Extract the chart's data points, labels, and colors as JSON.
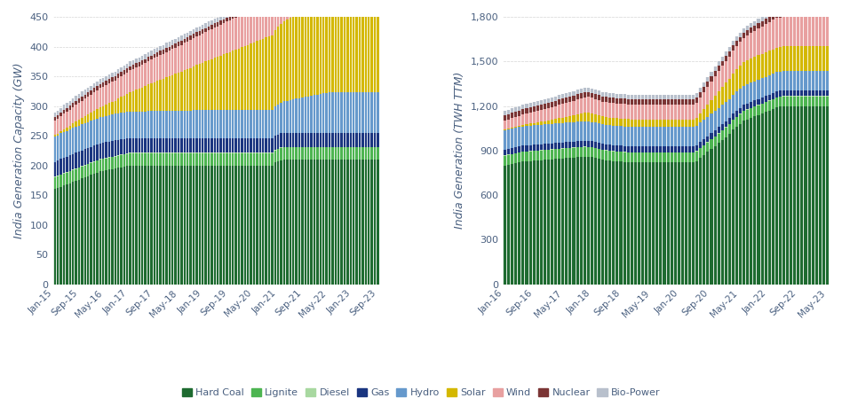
{
  "chart1": {
    "ylabel": "India Generation Capacity (GW)",
    "ylim": [
      0,
      450
    ],
    "yticks": [
      0,
      50,
      100,
      150,
      200,
      250,
      300,
      350,
      400,
      450
    ],
    "n_bars": 108,
    "xtick_labels": [
      "Jan-15",
      "Sep-15",
      "May-16",
      "Jan-17",
      "Sep-17",
      "May-18",
      "Jan-19",
      "Sep-19",
      "May-20",
      "Jan-21",
      "Sep-21",
      "May-22",
      "Jan-23",
      "Sep-23"
    ],
    "hard_coal": [
      160,
      162,
      164,
      166,
      168,
      170,
      172,
      174,
      176,
      178,
      180,
      182,
      184,
      186,
      188,
      190,
      191,
      192,
      193,
      194,
      195,
      196,
      197,
      198,
      199,
      200,
      200,
      200,
      200,
      200,
      200,
      200,
      200,
      200,
      200,
      200,
      200,
      200,
      200,
      200,
      200,
      200,
      200,
      200,
      200,
      200,
      200,
      200,
      200,
      200,
      200,
      200,
      200,
      200,
      200,
      200,
      200,
      200,
      200,
      200,
      200,
      200,
      200,
      200,
      200,
      200,
      200,
      200,
      200,
      200,
      200,
      200,
      200,
      205,
      207,
      209,
      210,
      210,
      210,
      210,
      210,
      210,
      210,
      210,
      210,
      210,
      210,
      210,
      210,
      210,
      210,
      210,
      210,
      210,
      210,
      210,
      210,
      210,
      210,
      210,
      210,
      210,
      210,
      210,
      210,
      210,
      210,
      210
    ],
    "lignite": [
      20,
      20,
      20,
      20,
      20,
      20,
      20,
      20,
      20,
      20,
      20,
      20,
      20,
      20,
      20,
      20,
      20,
      20,
      20,
      20,
      20,
      20,
      20,
      20,
      20,
      20,
      20,
      20,
      20,
      20,
      20,
      20,
      20,
      20,
      20,
      20,
      20,
      20,
      20,
      20,
      20,
      20,
      20,
      20,
      20,
      20,
      20,
      20,
      20,
      20,
      20,
      20,
      20,
      20,
      20,
      20,
      20,
      20,
      20,
      20,
      20,
      20,
      20,
      20,
      20,
      20,
      20,
      20,
      20,
      20,
      20,
      20,
      20,
      20,
      20,
      20,
      20,
      20,
      20,
      20,
      20,
      20,
      20,
      20,
      20,
      20,
      20,
      20,
      20,
      20,
      20,
      20,
      20,
      20,
      20,
      20,
      20,
      20,
      20,
      20,
      20,
      20,
      20,
      20,
      20,
      20,
      20,
      20
    ],
    "diesel": [
      1,
      1,
      1,
      1,
      1,
      1,
      1,
      1,
      1,
      1,
      1,
      1,
      1,
      1,
      1,
      1,
      1,
      1,
      1,
      1,
      1,
      1,
      1,
      1,
      1,
      1,
      1,
      1,
      1,
      1,
      1,
      1,
      1,
      1,
      1,
      1,
      1,
      1,
      1,
      1,
      1,
      1,
      1,
      1,
      1,
      1,
      1,
      1,
      1,
      1,
      1,
      1,
      1,
      1,
      1,
      1,
      1,
      1,
      1,
      1,
      1,
      1,
      1,
      1,
      1,
      1,
      1,
      1,
      1,
      1,
      1,
      1,
      1,
      1,
      1,
      1,
      1,
      1,
      1,
      1,
      1,
      1,
      1,
      1,
      1,
      1,
      1,
      1,
      1,
      1,
      1,
      1,
      1,
      1,
      1,
      1,
      1,
      1,
      1,
      1,
      1,
      1,
      1,
      1,
      1,
      1,
      1,
      1
    ],
    "gas": [
      25,
      25,
      26,
      26,
      26,
      26,
      26,
      26,
      26,
      26,
      26,
      26,
      26,
      26,
      26,
      26,
      26,
      26,
      26,
      26,
      26,
      26,
      26,
      25,
      25,
      25,
      25,
      25,
      25,
      25,
      25,
      25,
      25,
      25,
      25,
      25,
      25,
      25,
      25,
      25,
      25,
      25,
      25,
      25,
      25,
      25,
      25,
      25,
      25,
      25,
      25,
      25,
      25,
      25,
      25,
      25,
      25,
      25,
      25,
      25,
      25,
      25,
      25,
      25,
      25,
      25,
      25,
      25,
      24,
      24,
      24,
      24,
      24,
      24,
      24,
      24,
      24,
      24,
      24,
      24,
      24,
      24,
      24,
      24,
      24,
      24,
      24,
      24,
      24,
      24,
      24,
      24,
      24,
      24,
      24,
      24,
      24,
      24,
      24,
      24,
      24,
      24,
      24,
      24,
      24,
      24,
      24,
      24
    ],
    "hydro": [
      42,
      42,
      43,
      43,
      43,
      43,
      44,
      44,
      44,
      44,
      44,
      44,
      44,
      44,
      44,
      44,
      44,
      44,
      45,
      45,
      45,
      45,
      45,
      45,
      45,
      45,
      45,
      45,
      45,
      45,
      45,
      46,
      46,
      46,
      46,
      46,
      46,
      46,
      46,
      46,
      46,
      46,
      46,
      46,
      46,
      46,
      47,
      47,
      47,
      47,
      47,
      47,
      47,
      47,
      47,
      47,
      47,
      47,
      47,
      47,
      47,
      47,
      47,
      47,
      47,
      47,
      47,
      48,
      48,
      48,
      48,
      48,
      48,
      50,
      51,
      52,
      53,
      54,
      55,
      56,
      57,
      58,
      59,
      60,
      61,
      62,
      63,
      64,
      65,
      66,
      67,
      68,
      68,
      68,
      68,
      68,
      68,
      68,
      68,
      68,
      68,
      68,
      68,
      68,
      68,
      68,
      68,
      68
    ],
    "solar": [
      3,
      3,
      4,
      5,
      6,
      7,
      8,
      9,
      10,
      11,
      12,
      13,
      14,
      15,
      16,
      17,
      18,
      19,
      20,
      21,
      22,
      24,
      26,
      28,
      30,
      32,
      34,
      36,
      38,
      40,
      42,
      44,
      46,
      48,
      50,
      52,
      54,
      56,
      58,
      60,
      62,
      64,
      66,
      68,
      70,
      72,
      74,
      76,
      78,
      80,
      82,
      84,
      86,
      88,
      90,
      92,
      94,
      96,
      98,
      100,
      102,
      104,
      106,
      108,
      110,
      112,
      114,
      116,
      118,
      120,
      122,
      124,
      126,
      128,
      130,
      132,
      134,
      136,
      138,
      140,
      142,
      144,
      146,
      148,
      150,
      152,
      154,
      155,
      155,
      155,
      155,
      155,
      155,
      155,
      155,
      155,
      155,
      155,
      155,
      155,
      155,
      155,
      155,
      155,
      155,
      155,
      155,
      155
    ],
    "wind": [
      24,
      25,
      25,
      26,
      26,
      27,
      27,
      28,
      28,
      29,
      29,
      30,
      30,
      31,
      31,
      32,
      32,
      33,
      33,
      34,
      34,
      35,
      35,
      36,
      36,
      37,
      37,
      38,
      38,
      39,
      39,
      40,
      40,
      41,
      41,
      42,
      42,
      43,
      43,
      44,
      44,
      45,
      45,
      46,
      46,
      47,
      47,
      48,
      48,
      49,
      49,
      50,
      50,
      51,
      51,
      52,
      52,
      53,
      53,
      54,
      54,
      55,
      55,
      56,
      56,
      57,
      57,
      58,
      58,
      59,
      59,
      60,
      60,
      61,
      62,
      64,
      66,
      68,
      70,
      72,
      74,
      76,
      78,
      80,
      82,
      84,
      86,
      88,
      89,
      90,
      91,
      92,
      93,
      94,
      95,
      96,
      97,
      98,
      99,
      100,
      100,
      100,
      100,
      100,
      100,
      100,
      100,
      100
    ],
    "nuclear": [
      6,
      6,
      6,
      7,
      7,
      7,
      7,
      7,
      7,
      7,
      7,
      7,
      7,
      7,
      7,
      7,
      7,
      7,
      7,
      7,
      7,
      7,
      7,
      7,
      7,
      7,
      7,
      7,
      7,
      7,
      7,
      7,
      7,
      7,
      7,
      7,
      7,
      7,
      7,
      7,
      7,
      7,
      7,
      7,
      7,
      7,
      7,
      7,
      7,
      7,
      7,
      7,
      7,
      7,
      7,
      7,
      7,
      7,
      7,
      7,
      7,
      7,
      7,
      7,
      7,
      7,
      7,
      7,
      7,
      7,
      7,
      7,
      7,
      7,
      7,
      7,
      7,
      7,
      7,
      7,
      7,
      7,
      7,
      7,
      7,
      7,
      7,
      7,
      7,
      7,
      7,
      7,
      7,
      7,
      7,
      7,
      7,
      7,
      7,
      7,
      7,
      7,
      7,
      7,
      7,
      7,
      7,
      7
    ],
    "bio_power": [
      8,
      8,
      8,
      8,
      8,
      8,
      8,
      8,
      8,
      8,
      8,
      8,
      8,
      8,
      8,
      8,
      8,
      8,
      8,
      8,
      8,
      8,
      8,
      8,
      8,
      8,
      8,
      8,
      8,
      8,
      8,
      8,
      8,
      8,
      8,
      8,
      8,
      8,
      8,
      8,
      8,
      8,
      8,
      8,
      8,
      8,
      8,
      8,
      8,
      8,
      8,
      8,
      8,
      8,
      8,
      8,
      8,
      8,
      8,
      8,
      8,
      8,
      8,
      8,
      8,
      8,
      8,
      8,
      8,
      8,
      8,
      8,
      8,
      8,
      8,
      8,
      8,
      8,
      8,
      8,
      9,
      9,
      9,
      9,
      9,
      9,
      9,
      9,
      9,
      9,
      9,
      9,
      9,
      9,
      9,
      9,
      9,
      9,
      9,
      9,
      9,
      9,
      9,
      9,
      9,
      9,
      9,
      9
    ]
  },
  "chart2": {
    "ylabel": "India Generation (TWH TTM)",
    "ylim": [
      0,
      1800
    ],
    "yticks": [
      0,
      300,
      600,
      900,
      1200,
      1500,
      1800
    ],
    "n_bars": 90,
    "xtick_labels": [
      "Jan-16",
      "Sep-16",
      "May-17",
      "Jan-18",
      "Sep-18",
      "May-19",
      "Jan-20",
      "Sep-20",
      "May-21",
      "Jan-22",
      "Sep-22",
      "May-23"
    ],
    "hard_coal": [
      800,
      805,
      810,
      815,
      820,
      825,
      828,
      830,
      832,
      834,
      836,
      838,
      840,
      842,
      844,
      846,
      848,
      850,
      852,
      854,
      856,
      858,
      860,
      858,
      855,
      850,
      845,
      840,
      835,
      832,
      830,
      828,
      826,
      824,
      822,
      820,
      820,
      820,
      820,
      820,
      820,
      820,
      820,
      820,
      820,
      820,
      820,
      820,
      820,
      820,
      820,
      820,
      820,
      830,
      850,
      870,
      890,
      910,
      930,
      950,
      970,
      990,
      1010,
      1040,
      1060,
      1080,
      1100,
      1110,
      1120,
      1130,
      1140,
      1150,
      1160,
      1170,
      1180,
      1190,
      1195,
      1200,
      1200,
      1200,
      1200,
      1200,
      1200,
      1200,
      1200,
      1200,
      1200,
      1200,
      1200,
      1200
    ],
    "lignite": [
      65,
      65,
      65,
      65,
      65,
      65,
      65,
      65,
      65,
      65,
      65,
      65,
      65,
      65,
      65,
      65,
      65,
      65,
      65,
      65,
      65,
      65,
      65,
      65,
      65,
      65,
      65,
      65,
      65,
      65,
      65,
      65,
      65,
      65,
      65,
      65,
      65,
      65,
      65,
      65,
      65,
      65,
      65,
      65,
      65,
      65,
      65,
      65,
      65,
      65,
      65,
      65,
      65,
      65,
      65,
      65,
      65,
      65,
      65,
      65,
      65,
      65,
      65,
      65,
      65,
      65,
      65,
      65,
      65,
      65,
      65,
      65,
      65,
      65,
      65,
      65,
      65,
      65,
      65,
      65,
      65,
      65,
      65,
      65,
      65,
      65,
      65,
      65,
      65,
      65
    ],
    "diesel": [
      2,
      2,
      2,
      2,
      2,
      2,
      2,
      2,
      2,
      2,
      2,
      2,
      2,
      2,
      2,
      2,
      2,
      2,
      2,
      2,
      2,
      2,
      2,
      2,
      2,
      2,
      2,
      2,
      2,
      2,
      2,
      2,
      2,
      2,
      2,
      2,
      2,
      2,
      2,
      2,
      2,
      2,
      2,
      2,
      2,
      2,
      2,
      2,
      2,
      2,
      2,
      2,
      2,
      2,
      2,
      2,
      2,
      2,
      2,
      2,
      2,
      2,
      2,
      2,
      2,
      2,
      2,
      2,
      2,
      2,
      2,
      2,
      2,
      2,
      2,
      2,
      2,
      2,
      2,
      2,
      2,
      2,
      2,
      2,
      2,
      2,
      2,
      2,
      2,
      2
    ],
    "gas": [
      40,
      40,
      40,
      40,
      40,
      40,
      40,
      40,
      40,
      40,
      40,
      40,
      40,
      40,
      40,
      40,
      40,
      40,
      40,
      40,
      40,
      40,
      40,
      40,
      40,
      40,
      40,
      40,
      40,
      40,
      40,
      40,
      40,
      40,
      40,
      40,
      40,
      40,
      40,
      40,
      40,
      40,
      40,
      40,
      40,
      40,
      40,
      40,
      40,
      40,
      40,
      40,
      40,
      40,
      40,
      40,
      40,
      40,
      40,
      40,
      40,
      40,
      40,
      40,
      40,
      40,
      40,
      40,
      40,
      40,
      40,
      40,
      40,
      40,
      40,
      40,
      40,
      40,
      40,
      40,
      40,
      40,
      40,
      40,
      40,
      40,
      40,
      40,
      40,
      40
    ],
    "hydro": [
      130,
      130,
      130,
      130,
      130,
      130,
      130,
      130,
      130,
      130,
      130,
      130,
      130,
      130,
      130,
      130,
      130,
      130,
      130,
      130,
      130,
      130,
      130,
      130,
      130,
      130,
      130,
      130,
      130,
      130,
      130,
      130,
      130,
      130,
      130,
      130,
      130,
      130,
      130,
      130,
      130,
      130,
      130,
      130,
      130,
      130,
      130,
      130,
      130,
      130,
      130,
      130,
      130,
      130,
      130,
      130,
      130,
      130,
      130,
      130,
      130,
      130,
      130,
      130,
      130,
      130,
      130,
      130,
      130,
      130,
      130,
      130,
      130,
      130,
      130,
      130,
      130,
      130,
      130,
      130,
      130,
      130,
      130,
      130,
      130,
      130,
      130,
      130,
      130,
      130
    ],
    "solar": [
      5,
      6,
      7,
      8,
      9,
      10,
      12,
      14,
      16,
      18,
      20,
      22,
      25,
      28,
      31,
      34,
      37,
      40,
      43,
      46,
      50,
      54,
      58,
      60,
      58,
      56,
      54,
      52,
      52,
      52,
      52,
      52,
      52,
      52,
      52,
      52,
      52,
      52,
      52,
      52,
      52,
      52,
      52,
      52,
      52,
      52,
      52,
      52,
      52,
      52,
      52,
      52,
      52,
      55,
      62,
      72,
      82,
      92,
      102,
      112,
      122,
      130,
      138,
      143,
      148,
      153,
      158,
      162,
      165,
      165,
      165,
      165,
      165,
      165,
      165,
      165,
      165,
      165,
      165,
      165,
      165,
      165,
      165,
      165,
      165,
      165,
      165,
      165,
      165,
      165
    ],
    "wind": [
      60,
      62,
      64,
      66,
      68,
      70,
      72,
      74,
      76,
      78,
      80,
      82,
      84,
      86,
      88,
      90,
      92,
      94,
      96,
      98,
      100,
      102,
      104,
      105,
      104,
      103,
      102,
      101,
      101,
      101,
      101,
      101,
      101,
      101,
      101,
      101,
      101,
      101,
      101,
      101,
      101,
      101,
      101,
      101,
      101,
      101,
      101,
      101,
      101,
      101,
      101,
      101,
      101,
      102,
      106,
      112,
      118,
      124,
      130,
      136,
      140,
      144,
      148,
      152,
      156,
      160,
      163,
      167,
      170,
      175,
      180,
      185,
      190,
      195,
      200,
      200,
      200,
      200,
      200,
      200,
      200,
      200,
      200,
      200,
      200,
      200,
      200,
      200,
      200,
      200
    ],
    "nuclear": [
      35,
      35,
      35,
      35,
      35,
      35,
      35,
      35,
      35,
      35,
      35,
      35,
      35,
      35,
      35,
      35,
      35,
      35,
      35,
      35,
      35,
      35,
      35,
      35,
      35,
      35,
      35,
      35,
      35,
      35,
      35,
      35,
      35,
      35,
      35,
      35,
      35,
      35,
      35,
      35,
      35,
      35,
      35,
      35,
      35,
      35,
      35,
      35,
      35,
      35,
      35,
      35,
      35,
      35,
      35,
      35,
      35,
      35,
      35,
      35,
      35,
      35,
      35,
      35,
      35,
      35,
      35,
      35,
      35,
      35,
      35,
      35,
      35,
      35,
      35,
      35,
      35,
      35,
      35,
      35,
      35,
      35,
      35,
      35,
      35,
      35,
      35,
      35,
      35,
      35
    ],
    "bio_power": [
      30,
      30,
      30,
      30,
      30,
      30,
      30,
      30,
      30,
      30,
      30,
      30,
      30,
      30,
      30,
      30,
      30,
      30,
      30,
      30,
      30,
      30,
      30,
      30,
      30,
      30,
      30,
      30,
      30,
      30,
      30,
      30,
      30,
      30,
      30,
      30,
      30,
      30,
      30,
      30,
      30,
      30,
      30,
      30,
      30,
      30,
      30,
      30,
      30,
      30,
      30,
      30,
      30,
      30,
      30,
      30,
      30,
      30,
      30,
      30,
      30,
      30,
      30,
      30,
      30,
      30,
      30,
      30,
      30,
      30,
      30,
      30,
      30,
      30,
      30,
      30,
      30,
      30,
      30,
      30,
      30,
      30,
      30,
      30,
      30,
      30,
      30,
      30,
      30,
      30
    ]
  },
  "colors": {
    "hard_coal": "#1e6b30",
    "lignite": "#4db551",
    "diesel": "#a8d8a0",
    "gas": "#1a3580",
    "hydro": "#6699cc",
    "solar": "#d4b800",
    "wind": "#e8a0a0",
    "nuclear": "#7b3535",
    "bio_power": "#b8c0cc"
  },
  "legend_labels": [
    "Hard Coal",
    "Lignite",
    "Diesel",
    "Gas",
    "Hydro",
    "Solar",
    "Wind",
    "Nuclear",
    "Bio-Power"
  ],
  "text_color": "#4a6080",
  "bg_color": "#ffffff",
  "grid_color": "#d8d8d8"
}
